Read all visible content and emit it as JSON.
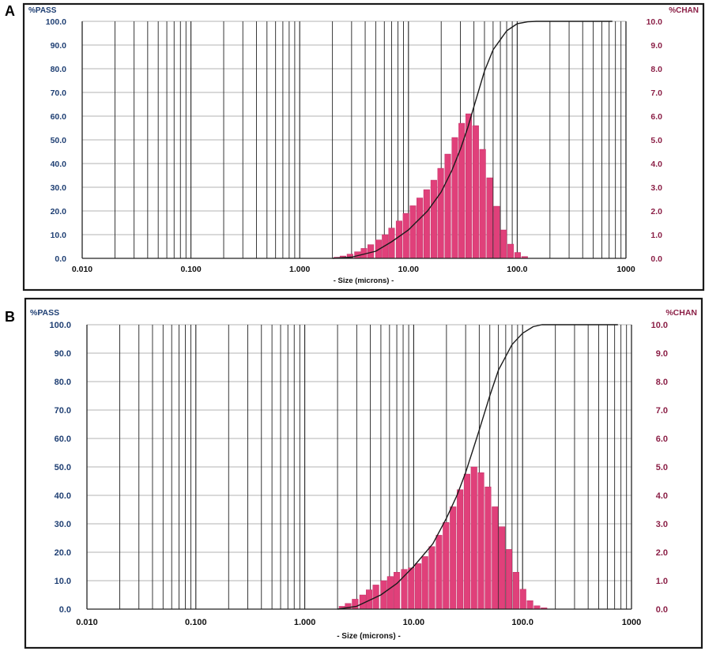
{
  "colors": {
    "pass": "#1f3f73",
    "chan": "#8b1f46",
    "bar": "#e0407a",
    "bar_edge": "#b8245c",
    "grid": "#222222",
    "frame": "#1a1a1a",
    "curve": "#1a1a1a"
  },
  "chart_data": [
    {
      "panel": "A",
      "type": "bar",
      "left_axis_title": "%PASS",
      "right_axis_title": "%CHAN",
      "xlabel": "- Size (microns) -",
      "x_scale": "log",
      "xlim": [
        0.01,
        1000
      ],
      "ylim_left": [
        0,
        100
      ],
      "ylim_right": [
        0,
        10
      ],
      "grid": true,
      "x_tick_labels": [
        "0.010",
        "0.100",
        "1.000",
        "10.00",
        "100.0",
        "1000"
      ],
      "left_tick_labels": [
        "0.0",
        "10.0",
        "20.0",
        "30.0",
        "40.0",
        "50.0",
        "60.0",
        "70.0",
        "80.0",
        "90.0",
        "100.0"
      ],
      "right_tick_labels": [
        "0.0",
        "1.0",
        "2.0",
        "3.0",
        "4.0",
        "5.0",
        "6.0",
        "7.0",
        "8.0",
        "9.0",
        "10.0"
      ],
      "series": [
        {
          "axis": "right",
          "kind": "histogram",
          "x": [
            2.2,
            2.5,
            2.9,
            3.4,
            3.9,
            4.5,
            5.3,
            6.1,
            7.0,
            8.2,
            9.5,
            11.0,
            12.7,
            14.7,
            17.1,
            19.8,
            23.0,
            26.7,
            30.9,
            35.8,
            41.5,
            48.1,
            55.8,
            64.7,
            75.0,
            87.0,
            100.9,
            117.0
          ],
          "values": [
            0.05,
            0.1,
            0.18,
            0.28,
            0.42,
            0.58,
            0.78,
            1.0,
            1.28,
            1.58,
            1.9,
            2.22,
            2.55,
            2.9,
            3.3,
            3.8,
            4.4,
            5.1,
            5.7,
            6.1,
            5.6,
            4.6,
            3.4,
            2.2,
            1.2,
            0.6,
            0.25,
            0.08
          ]
        },
        {
          "axis": "left",
          "kind": "cumulative",
          "x": [
            2.0,
            3.0,
            5.0,
            7.0,
            10.0,
            15.0,
            20.0,
            25.0,
            30.0,
            35.0,
            40.0,
            50.0,
            60.0,
            80.0,
            100.0,
            125.0,
            150.0,
            200.0,
            750.0
          ],
          "values": [
            0.0,
            0.5,
            3.0,
            7.0,
            12.0,
            20.0,
            28.0,
            37.0,
            46.0,
            55.0,
            64.0,
            79.0,
            88.0,
            96.0,
            99.0,
            99.8,
            100.0,
            100.0,
            100.0
          ]
        }
      ]
    },
    {
      "panel": "B",
      "type": "bar",
      "left_axis_title": "%PASS",
      "right_axis_title": "%CHAN",
      "xlabel": "- Size (microns) -",
      "x_scale": "log",
      "xlim": [
        0.01,
        1000
      ],
      "ylim_left": [
        0,
        100
      ],
      "ylim_right": [
        0,
        10
      ],
      "grid": true,
      "x_tick_labels": [
        "0.010",
        "0.100",
        "1.000",
        "10.00",
        "100.0",
        "1000"
      ],
      "left_tick_labels": [
        "0.0",
        "10.0",
        "20.0",
        "30.0",
        "40.0",
        "50.0",
        "60.0",
        "70.0",
        "80.0",
        "90.0",
        "100.0"
      ],
      "right_tick_labels": [
        "0.0",
        "1.0",
        "2.0",
        "3.0",
        "4.0",
        "5.0",
        "6.0",
        "7.0",
        "8.0",
        "9.0",
        "10.0"
      ],
      "series": [
        {
          "axis": "right",
          "kind": "histogram",
          "x": [
            2.2,
            2.5,
            2.9,
            3.4,
            3.9,
            4.5,
            5.3,
            6.1,
            7.0,
            8.2,
            9.5,
            11.0,
            12.7,
            14.7,
            17.1,
            19.8,
            23.0,
            26.7,
            30.9,
            35.8,
            41.5,
            48.1,
            55.8,
            64.7,
            75.0,
            87.0,
            100.9,
            117.0,
            135.6,
            157.2
          ],
          "values": [
            0.1,
            0.2,
            0.35,
            0.5,
            0.68,
            0.85,
            1.0,
            1.15,
            1.3,
            1.4,
            1.45,
            1.6,
            1.85,
            2.2,
            2.6,
            3.05,
            3.6,
            4.2,
            4.75,
            5.0,
            4.8,
            4.3,
            3.6,
            2.9,
            2.1,
            1.3,
            0.7,
            0.3,
            0.12,
            0.05
          ]
        },
        {
          "axis": "left",
          "kind": "cumulative",
          "x": [
            2.0,
            3.0,
            5.0,
            7.0,
            10.0,
            15.0,
            20.0,
            25.0,
            30.0,
            35.0,
            40.0,
            50.0,
            60.0,
            80.0,
            100.0,
            125.0,
            150.0,
            200.0,
            750.0
          ],
          "values": [
            0.0,
            1.0,
            5.0,
            9.0,
            15.0,
            23.0,
            32.0,
            40.0,
            48.0,
            56.0,
            63.0,
            75.0,
            84.0,
            93.0,
            97.0,
            99.3,
            100.0,
            100.0,
            100.0
          ]
        }
      ]
    }
  ]
}
